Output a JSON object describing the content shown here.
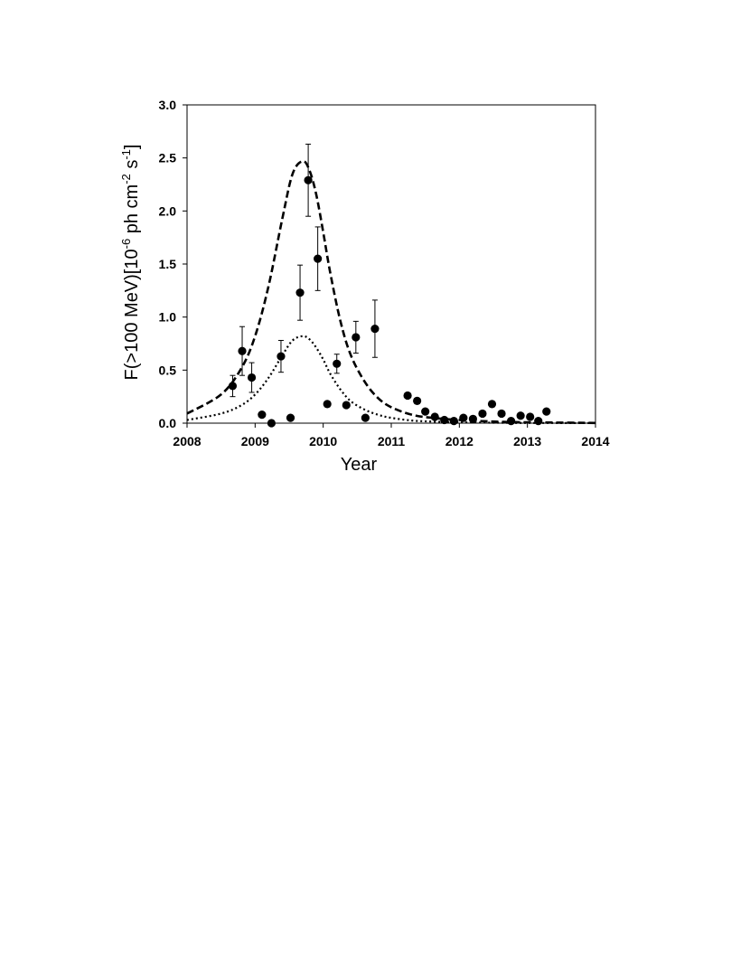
{
  "chart_data": {
    "type": "scatter",
    "title": "",
    "xlabel": "Year",
    "ylabel_parts": [
      "F(>100 MeV)[10",
      "-6",
      " ph cm",
      "-2",
      " s",
      "-1",
      "]"
    ],
    "xlim": [
      2008,
      2014
    ],
    "ylim": [
      0,
      3.0
    ],
    "xticks": [
      "2008",
      "2009",
      "2010",
      "2011",
      "2012",
      "2013",
      "2014"
    ],
    "yticks": [
      "0.0",
      "0.5",
      "1.0",
      "1.5",
      "2.0",
      "2.5",
      "3.0"
    ],
    "grid": false,
    "legend": "none",
    "points": [
      {
        "x": 2008.67,
        "y": 0.35,
        "err": 0.1
      },
      {
        "x": 2008.81,
        "y": 0.68,
        "err": 0.23
      },
      {
        "x": 2008.95,
        "y": 0.43,
        "err": 0.14
      },
      {
        "x": 2009.1,
        "y": 0.08
      },
      {
        "x": 2009.24,
        "y": 0.0
      },
      {
        "x": 2009.38,
        "y": 0.63,
        "err": 0.15
      },
      {
        "x": 2009.52,
        "y": 0.05
      },
      {
        "x": 2009.66,
        "y": 1.23,
        "err": 0.26
      },
      {
        "x": 2009.78,
        "y": 2.29,
        "err": 0.34
      },
      {
        "x": 2009.92,
        "y": 1.55,
        "err": 0.3
      },
      {
        "x": 2010.06,
        "y": 0.18
      },
      {
        "x": 2010.2,
        "y": 0.56,
        "err": 0.09
      },
      {
        "x": 2010.34,
        "y": 0.17
      },
      {
        "x": 2010.48,
        "y": 0.81,
        "err": 0.15
      },
      {
        "x": 2010.62,
        "y": 0.05
      },
      {
        "x": 2010.76,
        "y": 0.89,
        "err": 0.27
      },
      {
        "x": 2011.24,
        "y": 0.26
      },
      {
        "x": 2011.38,
        "y": 0.21
      },
      {
        "x": 2011.5,
        "y": 0.11
      },
      {
        "x": 2011.64,
        "y": 0.06
      },
      {
        "x": 2011.78,
        "y": 0.03
      },
      {
        "x": 2011.92,
        "y": 0.02
      },
      {
        "x": 2012.06,
        "y": 0.05
      },
      {
        "x": 2012.2,
        "y": 0.04
      },
      {
        "x": 2012.34,
        "y": 0.09
      },
      {
        "x": 2012.48,
        "y": 0.18
      },
      {
        "x": 2012.62,
        "y": 0.09
      },
      {
        "x": 2012.76,
        "y": 0.02
      },
      {
        "x": 2012.9,
        "y": 0.07
      },
      {
        "x": 2013.04,
        "y": 0.06
      },
      {
        "x": 2013.16,
        "y": 0.02
      },
      {
        "x": 2013.28,
        "y": 0.11
      }
    ],
    "curves": [
      {
        "style": "dashed",
        "color": "#000000",
        "x": [
          2008.0,
          2008.5,
          2008.8,
          2009.0,
          2009.2,
          2009.4,
          2009.55,
          2009.7,
          2009.8,
          2009.9,
          2010.0,
          2010.1,
          2010.25,
          2010.4,
          2010.6,
          2010.8,
          2011.0,
          2011.3,
          2011.6,
          2012.0,
          2012.5,
          2013.0,
          2014.0
        ],
        "y": [
          0.09,
          0.27,
          0.52,
          0.82,
          1.3,
          1.93,
          2.35,
          2.47,
          2.38,
          2.15,
          1.8,
          1.43,
          0.97,
          0.65,
          0.4,
          0.24,
          0.15,
          0.08,
          0.05,
          0.03,
          0.015,
          0.008,
          0.002
        ]
      },
      {
        "style": "dotted",
        "color": "#000000",
        "x": [
          2008.0,
          2008.5,
          2008.8,
          2009.0,
          2009.2,
          2009.4,
          2009.55,
          2009.7,
          2009.8,
          2009.9,
          2010.0,
          2010.1,
          2010.25,
          2010.4,
          2010.6,
          2010.8,
          2011.0,
          2011.3,
          2011.6,
          2012.0,
          2012.5,
          2013.0,
          2014.0
        ],
        "y": [
          0.03,
          0.09,
          0.17,
          0.27,
          0.43,
          0.64,
          0.78,
          0.82,
          0.79,
          0.71,
          0.6,
          0.47,
          0.32,
          0.21,
          0.13,
          0.08,
          0.05,
          0.025,
          0.015,
          0.008,
          0.004,
          0.002,
          0.001
        ]
      }
    ]
  }
}
